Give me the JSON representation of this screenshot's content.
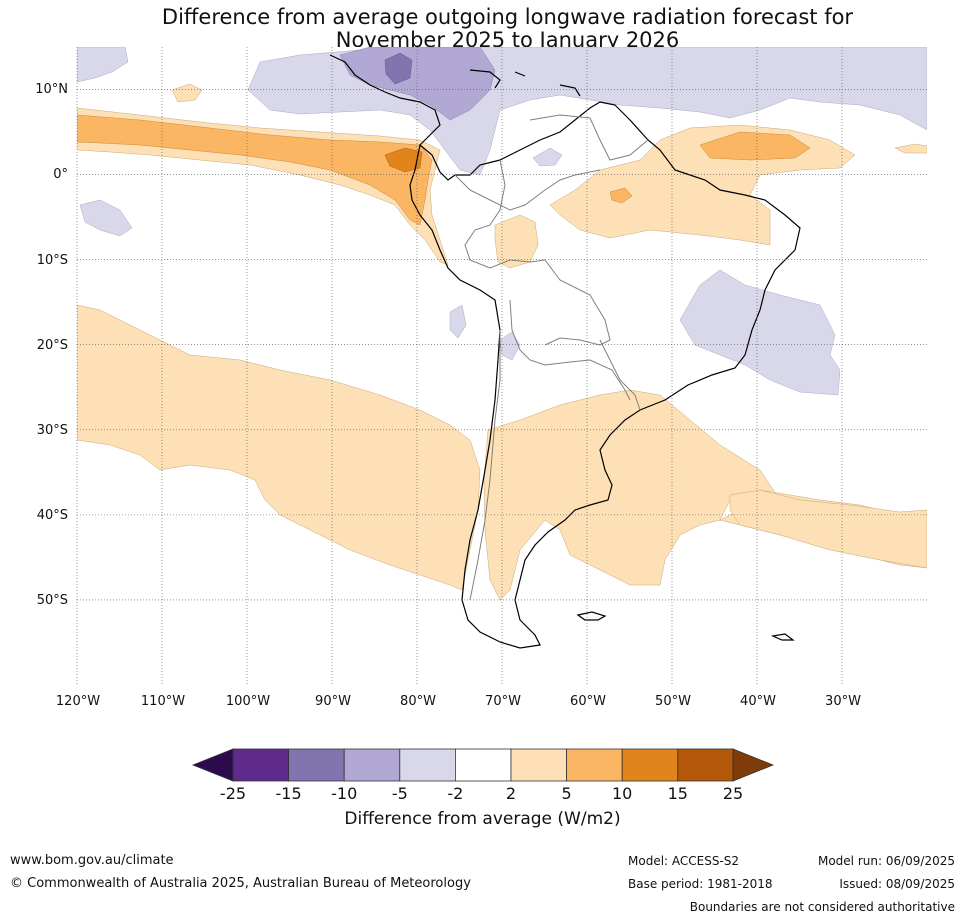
{
  "title": {
    "line1": "Difference from average outgoing longwave radiation forecast for",
    "line2": "November 2025 to January 2026"
  },
  "map": {
    "lat_labels": [
      "10°N",
      "0°",
      "10°S",
      "20°S",
      "30°S",
      "40°S",
      "50°S"
    ],
    "lon_labels": [
      "120°W",
      "110°W",
      "100°W",
      "90°W",
      "80°W",
      "70°W",
      "60°W",
      "50°W",
      "40°W",
      "30°W"
    ],
    "lon_range": [
      -120,
      -20
    ],
    "lat_range": [
      -60,
      15
    ],
    "gridlines": "dotted",
    "region": "South America"
  },
  "colorbar": {
    "ticks": [
      "-25",
      "-15",
      "-10",
      "-5",
      "-2",
      "2",
      "5",
      "10",
      "15",
      "25"
    ],
    "colors": {
      "below_-25": "#2d0a4e",
      "-25_-15": "#5e2a8c",
      "-15_-10": "#8275af",
      "-10_-5": "#b1a8d3",
      "-5_-2": "#d8d8ea",
      "-2_2": "#ffffff",
      "2_5": "#fde0b6",
      "5_10": "#fbb664",
      "10_15": "#e2841c",
      "15_25": "#b35909",
      "above_25": "#7f3b08"
    },
    "label": "Difference from average (W/m2)"
  },
  "footer": {
    "url": "www.bom.gov.au/climate",
    "copyright": "© Commonwealth of Australia 2025, Australian Bureau of Meteorology",
    "model": "Model: ACCESS-S2",
    "base_period": "Base period: 1981-2018",
    "model_run": "Model run: 06/09/2025",
    "issued": "Issued: 08/09/2025",
    "boundaries": "Boundaries are not considered authoritative"
  }
}
